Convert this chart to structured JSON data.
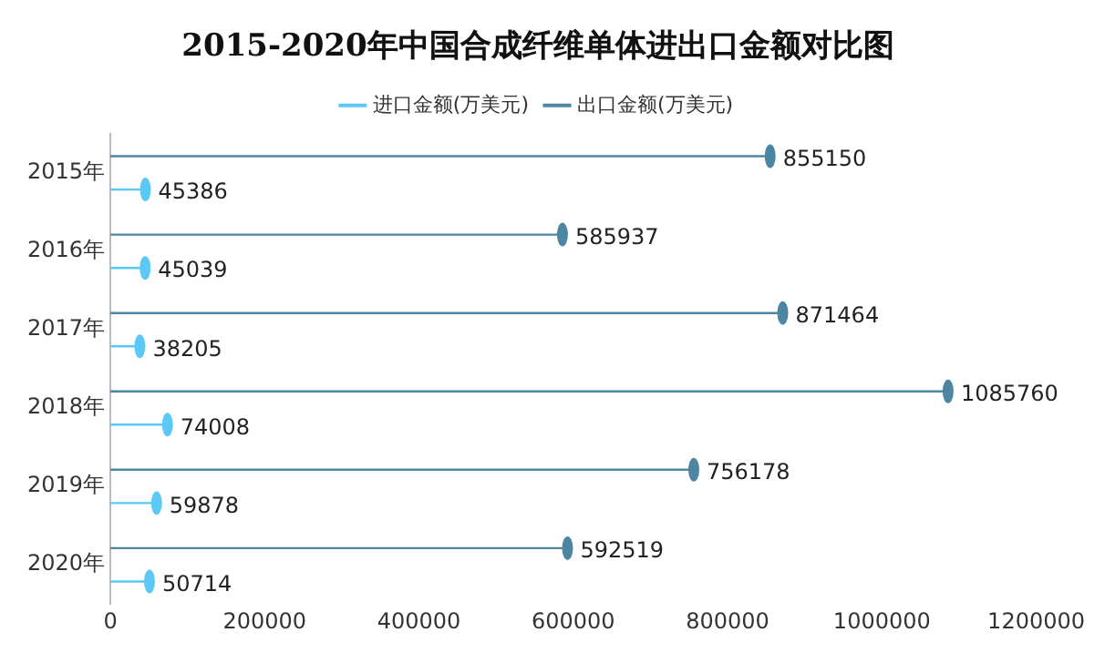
{
  "chart_data": {
    "type": "lollipop",
    "orientation": "horizontal",
    "title": "2015-2020年中国合成纤维单体进出口金额对比图",
    "categories": [
      "2015年",
      "2016年",
      "2017年",
      "2018年",
      "2019年",
      "2020年"
    ],
    "series": [
      {
        "name": "进口金额(万美元)",
        "color": "#5bc8f5",
        "values": [
          45386,
          45039,
          38205,
          74008,
          59878,
          50714
        ]
      },
      {
        "name": "出口金额(万美元)",
        "color": "#4d86a3",
        "values": [
          855150,
          585937,
          871464,
          1085760,
          756178,
          592519
        ]
      }
    ],
    "xlim": [
      0,
      1200000
    ],
    "xticks": [
      0,
      200000,
      400000,
      600000,
      800000,
      1000000,
      1200000
    ],
    "data_labels": true,
    "legend": "top",
    "grid": false,
    "marker": "circle"
  }
}
